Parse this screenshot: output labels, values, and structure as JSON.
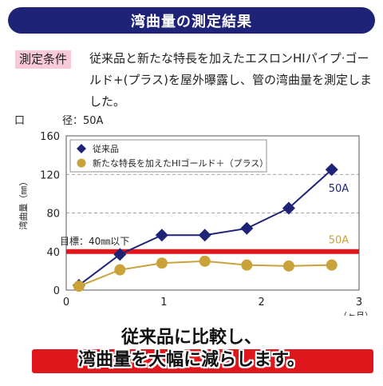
{
  "header": {
    "title": "湾曲量の測定結果"
  },
  "condition": {
    "tag": "測定条件",
    "text": "従来品と新たな特長を加えたエスロンHIパイプ·ゴールド+(プラス)を屋外曝露し、管の湾曲量を測定しました。"
  },
  "diameter": {
    "label": "口",
    "text": "径：50A"
  },
  "chart_data": {
    "type": "line",
    "ylabel": "湾曲量（㎜）",
    "xunit": "（ヶ月）",
    "xlim": [
      0,
      3
    ],
    "ylim": [
      0,
      160
    ],
    "xticks": [
      "0",
      "1",
      "2",
      "3"
    ],
    "yticks": [
      "0",
      "40",
      "80",
      "120",
      "160"
    ],
    "grid": "dashed horizontal",
    "legend_position": "top-left",
    "target": {
      "label": "目標：40㎜以下",
      "value": 40,
      "color": "#e0161d"
    },
    "series": [
      {
        "name": "従来品",
        "color": "#1f2378",
        "marker": "diamond",
        "end_label": "50A",
        "x": [
          0.13,
          0.55,
          0.98,
          1.42,
          1.85,
          2.28,
          2.72
        ],
        "y": [
          5,
          37,
          57,
          57,
          64,
          85,
          125
        ]
      },
      {
        "name": "新たな特長を加えたHIゴールド＋（プラス）",
        "color": "#c9a23a",
        "marker": "circle",
        "end_label": "50A",
        "x": [
          0.13,
          0.55,
          0.98,
          1.42,
          1.85,
          2.28,
          2.72
        ],
        "y": [
          4,
          21,
          28,
          30,
          26,
          25,
          26
        ]
      }
    ]
  },
  "footer": {
    "line1": "従来品に比較し、",
    "line2": "湾曲量を大幅に減らします。"
  }
}
